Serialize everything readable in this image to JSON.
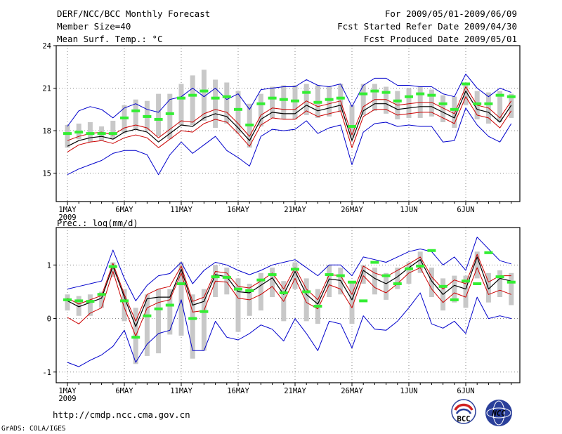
{
  "header": {
    "title": "DERF/NCC/BCC Monthly Forecast",
    "member_size": "Member Size=40",
    "variable": "Mean Surf. Temp.: °C",
    "period": "For 2009/05/01-2009/06/09",
    "fcst_started": "Fcst Started Refer Date 2009/04/30",
    "fcst_produced": "Fcst Produced Date 2009/05/01"
  },
  "prec_label": "Prec.: log(mm/d)",
  "footer": {
    "url": "http://cmdp.ncc.cma.gov.cn",
    "grads": "GrADS: COLA/IGES",
    "logo_bcc": "BCC",
    "logo_ncc": "NCC"
  },
  "colors": {
    "mean": "#000000",
    "inner_band": "#cc0000",
    "outer_band": "#0000cc",
    "observed": "#33ee33",
    "spread_bar": "#c8c8c8"
  },
  "chart_data": [
    {
      "type": "line",
      "title": "Mean Surf. Temp.: °C",
      "days": 40,
      "x_tick_labels": [
        "1MAY",
        "6MAY",
        "11MAY",
        "16MAY",
        "21MAY",
        "26MAY",
        "1JUN",
        "6JUN"
      ],
      "x_year_label": "2009",
      "ylim": [
        13.0,
        24.0
      ],
      "y_ticks": [
        15,
        18,
        21,
        24
      ],
      "series": [
        {
          "name": "mean",
          "values": [
            16.9,
            17.3,
            17.5,
            17.6,
            17.4,
            17.9,
            18.1,
            17.9,
            17.2,
            17.8,
            18.4,
            18.3,
            18.9,
            19.2,
            19.0,
            18.2,
            17.3,
            18.8,
            19.3,
            19.2,
            19.2,
            19.8,
            19.4,
            19.6,
            19.8,
            17.3,
            19.4,
            19.9,
            19.9,
            19.5,
            19.6,
            19.7,
            19.7,
            19.3,
            18.9,
            20.8,
            19.5,
            19.3,
            18.6,
            19.8
          ]
        },
        {
          "name": "inner_upper",
          "values": [
            17.3,
            17.6,
            17.8,
            17.9,
            17.7,
            18.2,
            18.4,
            18.2,
            17.5,
            18.1,
            18.7,
            18.6,
            19.2,
            19.5,
            19.3,
            18.5,
            17.6,
            19.1,
            19.6,
            19.5,
            19.5,
            20.1,
            19.7,
            19.9,
            20.1,
            17.7,
            19.7,
            20.2,
            20.2,
            19.8,
            19.9,
            20.0,
            20.0,
            19.6,
            19.2,
            21.1,
            19.8,
            19.6,
            18.9,
            20.1
          ]
        },
        {
          "name": "inner_lower",
          "values": [
            16.5,
            17.0,
            17.2,
            17.3,
            17.1,
            17.5,
            17.7,
            17.5,
            16.8,
            17.4,
            18.0,
            17.9,
            18.5,
            18.8,
            18.6,
            17.8,
            16.9,
            18.4,
            18.9,
            18.8,
            18.8,
            19.4,
            19.0,
            19.2,
            19.4,
            16.8,
            19.0,
            19.5,
            19.5,
            19.1,
            19.2,
            19.3,
            19.3,
            18.9,
            18.5,
            20.4,
            19.1,
            18.9,
            18.2,
            19.4
          ]
        },
        {
          "name": "outer_upper",
          "values": [
            18.3,
            19.4,
            19.7,
            19.5,
            18.9,
            19.6,
            19.9,
            19.5,
            19.3,
            20.2,
            20.4,
            21.0,
            20.4,
            21.0,
            20.2,
            20.6,
            19.5,
            20.9,
            21.0,
            21.1,
            21.1,
            21.6,
            21.2,
            21.1,
            21.3,
            19.7,
            21.2,
            21.7,
            21.7,
            21.2,
            21.2,
            21.1,
            21.1,
            20.6,
            20.4,
            22.0,
            21.0,
            20.4,
            21.0,
            20.7
          ]
        },
        {
          "name": "outer_lower",
          "values": [
            14.9,
            15.3,
            15.6,
            15.9,
            16.4,
            16.6,
            16.6,
            16.3,
            14.9,
            16.3,
            17.2,
            16.4,
            17.0,
            17.6,
            16.6,
            16.1,
            15.5,
            17.6,
            18.1,
            18.0,
            18.1,
            18.7,
            17.8,
            18.2,
            18.4,
            15.6,
            17.9,
            18.5,
            18.6,
            18.3,
            18.4,
            18.3,
            18.3,
            17.2,
            17.3,
            19.6,
            18.4,
            17.6,
            17.2,
            18.5
          ]
        },
        {
          "name": "observed",
          "values": [
            17.8,
            17.9,
            17.8,
            17.8,
            17.8,
            18.9,
            19.4,
            19.0,
            18.8,
            19.2,
            20.3,
            20.5,
            20.8,
            20.3,
            20.4,
            19.5,
            18.4,
            19.9,
            20.3,
            20.2,
            20.1,
            20.7,
            20.0,
            20.2,
            20.3,
            18.3,
            20.6,
            20.8,
            20.7,
            20.1,
            20.4,
            20.6,
            20.5,
            19.9,
            19.5,
            21.3,
            19.9,
            19.9,
            20.5,
            20.4
          ]
        },
        {
          "name": "spread_top",
          "values": [
            18.4,
            18.5,
            18.6,
            18.3,
            18.7,
            19.8,
            20.2,
            20.1,
            20.6,
            20.6,
            21.3,
            21.9,
            22.3,
            21.6,
            21.4,
            20.8,
            19.9,
            20.6,
            21.1,
            21.2,
            21.2,
            21.3,
            21.2,
            21.1,
            21.3,
            19.8,
            21.3,
            21.3,
            21.1,
            20.8,
            21.0,
            21.1,
            20.9,
            20.5,
            20.4,
            21.2,
            20.8,
            20.7,
            20.8,
            20.6
          ]
        },
        {
          "name": "spread_bottom",
          "values": [
            16.8,
            17.4,
            17.2,
            17.3,
            17.4,
            17.8,
            18.1,
            18.0,
            17.6,
            17.4,
            18.4,
            18.4,
            18.7,
            18.2,
            18.5,
            17.8,
            16.8,
            18.3,
            18.9,
            18.8,
            18.8,
            19.1,
            18.9,
            19.0,
            19.3,
            17.5,
            19.1,
            19.4,
            19.2,
            18.8,
            18.9,
            18.9,
            19.0,
            18.6,
            18.2,
            19.8,
            18.8,
            18.5,
            18.6,
            18.9
          ]
        }
      ]
    },
    {
      "type": "line",
      "title": "Prec.: log(mm/d)",
      "days": 40,
      "x_tick_labels": [
        "1MAY",
        "6MAY",
        "11MAY",
        "16MAY",
        "21MAY",
        "26MAY",
        "1JUN",
        "6JUN"
      ],
      "x_year_label": "2009",
      "ylim": [
        -1.2,
        1.7
      ],
      "y_ticks": [
        -1,
        0,
        1
      ],
      "series": [
        {
          "name": "mean",
          "values": [
            0.33,
            0.22,
            0.3,
            0.38,
            0.98,
            0.4,
            -0.15,
            0.37,
            0.4,
            0.4,
            0.92,
            0.25,
            0.32,
            0.82,
            0.78,
            0.5,
            0.48,
            0.62,
            0.76,
            0.45,
            0.88,
            0.45,
            0.27,
            0.74,
            0.71,
            0.35,
            0.9,
            0.75,
            0.65,
            0.78,
            0.95,
            1.1,
            0.7,
            0.45,
            0.62,
            0.55,
            1.15,
            0.55,
            0.75,
            0.7
          ]
        },
        {
          "name": "inner_upper",
          "values": [
            0.38,
            0.27,
            0.35,
            0.43,
            1.03,
            0.45,
            -0.05,
            0.45,
            0.55,
            0.6,
            0.98,
            0.32,
            0.4,
            0.88,
            0.85,
            0.6,
            0.57,
            0.7,
            0.85,
            0.55,
            0.95,
            0.55,
            0.35,
            0.82,
            0.8,
            0.45,
            0.98,
            0.85,
            0.78,
            0.9,
            1.02,
            1.15,
            0.78,
            0.55,
            0.72,
            0.65,
            1.2,
            0.68,
            0.8,
            0.8
          ]
        },
        {
          "name": "inner_lower",
          "values": [
            0.02,
            -0.1,
            0.1,
            0.2,
            0.88,
            0.2,
            -0.33,
            0.2,
            0.3,
            0.35,
            0.85,
            0.12,
            0.15,
            0.7,
            0.68,
            0.38,
            0.35,
            0.45,
            0.6,
            0.32,
            0.75,
            0.3,
            0.18,
            0.63,
            0.55,
            0.2,
            0.8,
            0.58,
            0.48,
            0.65,
            0.85,
            0.95,
            0.55,
            0.3,
            0.48,
            0.4,
            0.95,
            0.45,
            0.53,
            0.45
          ]
        },
        {
          "name": "outer_upper",
          "values": [
            0.55,
            0.6,
            0.65,
            0.7,
            1.28,
            0.75,
            0.33,
            0.62,
            0.8,
            0.84,
            1.05,
            0.65,
            0.9,
            1.05,
            1.0,
            0.9,
            0.82,
            0.9,
            1.0,
            1.05,
            1.1,
            0.95,
            0.8,
            1.0,
            1.0,
            0.8,
            1.15,
            1.1,
            1.05,
            1.15,
            1.25,
            1.3,
            1.25,
            1.0,
            1.15,
            0.9,
            1.52,
            1.3,
            1.08,
            1.02
          ]
        },
        {
          "name": "outer_lower",
          "values": [
            -0.82,
            -0.9,
            -0.78,
            -0.68,
            -0.52,
            -0.22,
            -0.82,
            -0.48,
            -0.28,
            -0.22,
            0.35,
            -0.6,
            -0.6,
            -0.05,
            -0.35,
            -0.4,
            -0.28,
            -0.12,
            -0.2,
            -0.42,
            0.0,
            -0.28,
            -0.6,
            -0.05,
            -0.1,
            -0.55,
            0.05,
            -0.2,
            -0.22,
            -0.05,
            0.2,
            0.48,
            -0.1,
            -0.18,
            -0.05,
            -0.28,
            0.4,
            0.0,
            0.05,
            0.0
          ]
        },
        {
          "name": "observed",
          "values": [
            0.35,
            0.33,
            0.32,
            0.45,
            0.97,
            0.33,
            -0.35,
            0.05,
            0.18,
            0.25,
            0.65,
            0.0,
            0.13,
            0.78,
            0.77,
            0.55,
            0.52,
            0.72,
            0.82,
            0.48,
            0.92,
            0.5,
            0.23,
            0.82,
            0.8,
            0.68,
            0.33,
            1.05,
            0.8,
            0.65,
            0.93,
            0.98,
            1.27,
            0.6,
            0.35,
            0.7,
            0.65,
            1.23,
            0.78,
            0.68
          ]
        },
        {
          "name": "spread_top",
          "values": [
            0.45,
            0.42,
            0.45,
            0.5,
            1.05,
            0.55,
            0.2,
            0.45,
            0.55,
            0.55,
            1.05,
            0.45,
            0.55,
            1.0,
            0.95,
            0.75,
            0.65,
            0.85,
            0.95,
            0.7,
            1.05,
            0.75,
            0.55,
            1.0,
            0.95,
            0.7,
            1.0,
            0.95,
            0.85,
            0.95,
            1.05,
            1.25,
            0.95,
            0.75,
            0.8,
            0.8,
            1.25,
            0.85,
            0.9,
            0.85
          ]
        },
        {
          "name": "spread_bottom",
          "values": [
            0.15,
            0.05,
            0.05,
            0.2,
            0.78,
            -0.05,
            -0.85,
            -0.7,
            -0.65,
            -0.3,
            -0.32,
            -0.75,
            -0.6,
            0.4,
            0.45,
            -0.25,
            0.05,
            0.15,
            0.4,
            -0.05,
            0.55,
            -0.05,
            -0.1,
            0.4,
            0.45,
            -0.1,
            0.65,
            0.45,
            0.35,
            0.55,
            0.65,
            0.85,
            0.4,
            0.15,
            0.3,
            0.2,
            0.75,
            0.3,
            0.4,
            0.25
          ]
        }
      ]
    }
  ]
}
